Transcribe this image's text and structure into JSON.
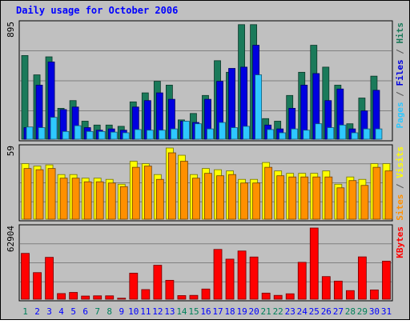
{
  "chart_data": {
    "type": "bar",
    "title": "Daily usage for October 2006",
    "categories": [
      "1",
      "2",
      "3",
      "4",
      "5",
      "6",
      "7",
      "8",
      "9",
      "10",
      "11",
      "12",
      "13",
      "14",
      "15",
      "16",
      "17",
      "18",
      "19",
      "20",
      "21",
      "22",
      "23",
      "24",
      "25",
      "26",
      "27",
      "28",
      "29",
      "30",
      "31"
    ],
    "weekend_days": [
      "1",
      "7",
      "8",
      "14",
      "15",
      "21",
      "22",
      "28",
      "29"
    ],
    "panels": [
      {
        "max_label": "895",
        "ymax": 895,
        "series": [
          {
            "name": "Hits",
            "color": "#1a7a5a",
            "values": [
              650,
              500,
              640,
              240,
              300,
              140,
              110,
              110,
              100,
              290,
              360,
              450,
              420,
              150,
              200,
              340,
              610,
              520,
              890,
              890,
              160,
              140,
              340,
              520,
              730,
              560,
              420,
              120,
              320,
              490,
              0
            ]
          },
          {
            "name": "Files",
            "color": "#0000e0",
            "values": [
              90,
              420,
              600,
              230,
              250,
              90,
              70,
              80,
              70,
              250,
              300,
              360,
              310,
              140,
              130,
              310,
              450,
              550,
              560,
              730,
              110,
              80,
              240,
              420,
              510,
              300,
              390,
              80,
              220,
              380,
              0
            ]
          },
          {
            "name": "Pages",
            "color": "#2ec8ff",
            "values": [
              95,
              90,
              170,
              60,
              105,
              60,
              60,
              55,
              50,
              75,
              70,
              70,
              80,
              140,
              120,
              80,
              130,
              90,
              100,
              500,
              75,
              50,
              80,
              70,
              120,
              90,
              110,
              50,
              80,
              80,
              0
            ]
          }
        ],
        "label_parts": [
          {
            "text": "Pages",
            "color": "#2ec8ff"
          },
          {
            "text": " / ",
            "color": "#555555"
          },
          {
            "text": "Files",
            "color": "#0000e0"
          },
          {
            "text": " / ",
            "color": "#555555"
          },
          {
            "text": "Hits",
            "color": "#1a7a5a"
          }
        ]
      },
      {
        "max_label": "59",
        "ymax": 59,
        "series": [
          {
            "name": "Visits",
            "color": "#ffff00",
            "values": [
              46,
              44,
              45,
              37,
              37,
              34,
              34,
              33,
              29,
              48,
              46,
              37,
              59,
              53,
              37,
              42,
              41,
              40,
              33,
              33,
              47,
              40,
              38,
              38,
              38,
              40,
              29,
              35,
              33,
              46,
              46
            ]
          },
          {
            "name": "Sites",
            "color": "#ff9000",
            "values": [
              42,
              41,
              42,
              34,
              34,
              31,
              31,
              30,
              27,
              43,
              44,
              33,
              55,
              48,
              34,
              38,
              36,
              37,
              30,
              30,
              43,
              36,
              35,
              35,
              35,
              35,
              26,
              32,
              28,
              43,
              40
            ]
          }
        ],
        "label_parts": [
          {
            "text": "Sites",
            "color": "#ff9000"
          },
          {
            "text": " / ",
            "color": "#555555"
          },
          {
            "text": "Visits",
            "color": "#ffff00"
          }
        ]
      },
      {
        "max_label": "62904",
        "ymax": 62904,
        "series": [
          {
            "name": "KBytes",
            "color": "#ff0000",
            "values": [
              40500,
              23500,
              37000,
              5000,
              6000,
              2800,
              3000,
              3000,
              900,
              23000,
              8500,
              30000,
              16700,
              3200,
              3400,
              9000,
              44000,
              35400,
              42600,
              37300,
              5400,
              3400,
              4800,
              32600,
              62904,
              20000,
              16000,
              7600,
              37400,
              8200,
              33600
            ]
          }
        ],
        "label_parts": [
          {
            "text": "KBytes",
            "color": "#ff0000"
          }
        ]
      }
    ]
  },
  "colors": {
    "background": "#c0c0c0",
    "title": "#0000ff",
    "weekday_label": "#0000ff",
    "weekend_label": "#00805a"
  }
}
